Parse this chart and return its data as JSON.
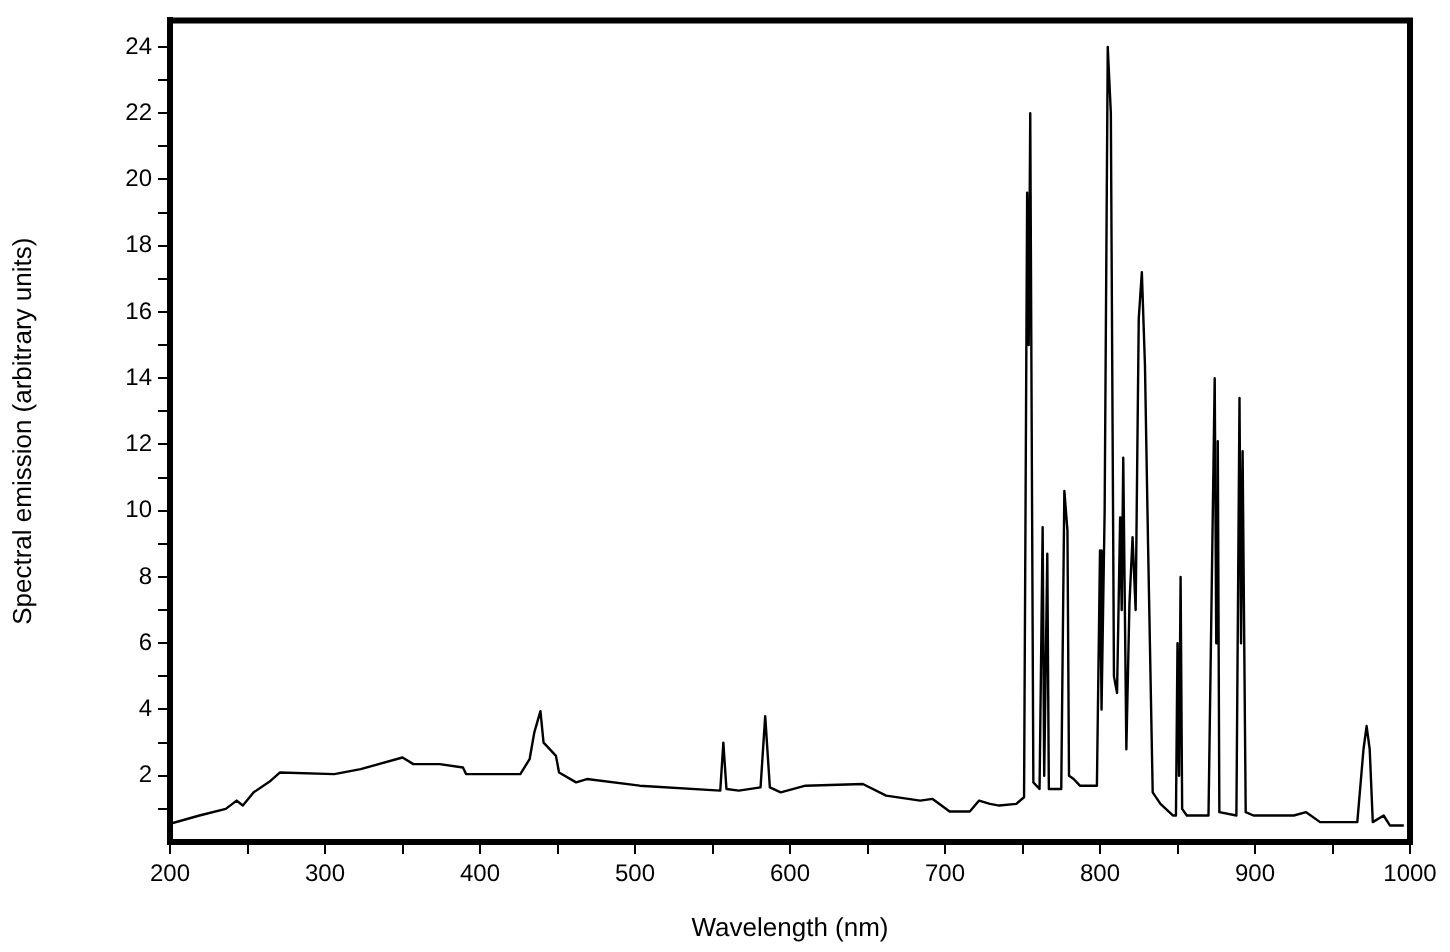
{
  "chart_data": {
    "type": "line",
    "xlabel": "Wavelength (nm)",
    "ylabel": "Spectral emission (arbitrary units)",
    "x": [
      200,
      219,
      236,
      243,
      247,
      254,
      265,
      271,
      306,
      323,
      350,
      357,
      374,
      389,
      391,
      426,
      432,
      435,
      439,
      441,
      443,
      449,
      451,
      462,
      469,
      503,
      555,
      557,
      559,
      567,
      581,
      584,
      587,
      594,
      610,
      647,
      662,
      684,
      692,
      703,
      716,
      722,
      729,
      735,
      746,
      751,
      753,
      754,
      755,
      757,
      761,
      763,
      764,
      766,
      767,
      775,
      777,
      779,
      780,
      783,
      787,
      798,
      800,
      801,
      803,
      805,
      807,
      809,
      811,
      813,
      814,
      815,
      817,
      819,
      821,
      823,
      825,
      827,
      829,
      831,
      834,
      839,
      847,
      849,
      850,
      851,
      852,
      853,
      856,
      870,
      874,
      875,
      876,
      877,
      888,
      890,
      891,
      892,
      894,
      899,
      925,
      933,
      942,
      966,
      970,
      972,
      974,
      976,
      983,
      987,
      996
    ],
    "series": [
      {
        "color": "#000000",
        "values": [
          0.55,
          0.8,
          1.0,
          1.25,
          1.1,
          1.5,
          1.85,
          2.1,
          2.05,
          2.2,
          2.55,
          2.35,
          2.35,
          2.25,
          2.05,
          2.05,
          2.5,
          3.3,
          3.95,
          3.0,
          2.9,
          2.6,
          2.1,
          1.8,
          1.9,
          1.7,
          1.55,
          3.0,
          1.6,
          1.55,
          1.65,
          3.8,
          1.65,
          1.5,
          1.7,
          1.75,
          1.4,
          1.25,
          1.3,
          0.92,
          0.92,
          1.25,
          1.15,
          1.1,
          1.15,
          1.35,
          19.6,
          15,
          22,
          1.8,
          1.6,
          9.5,
          2,
          8.7,
          1.6,
          1.6,
          10.6,
          9.4,
          2,
          1.9,
          1.7,
          1.7,
          8.8,
          4,
          10,
          24,
          22,
          5,
          4.5,
          9.8,
          7,
          11.6,
          2.8,
          7.2,
          9.2,
          7,
          15.8,
          17.2,
          14.4,
          9,
          1.5,
          1.15,
          0.8,
          0.8,
          6.0,
          2,
          8.0,
          1,
          0.8,
          0.8,
          14,
          6,
          12.1,
          0.9,
          0.8,
          13.4,
          6,
          11.8,
          0.9,
          0.8,
          0.8,
          0.9,
          0.6,
          0.6,
          2.8,
          3.5,
          2.8,
          0.6,
          0.8,
          0.5,
          0.5
        ]
      }
    ],
    "xlim": [
      200,
      1000
    ],
    "ylim": [
      0,
      24.8
    ],
    "xticks": [
      200,
      {
        "value": 250,
        "label": null
      },
      300,
      {
        "value": 350,
        "label": null
      },
      400,
      {
        "value": 450,
        "label": null
      },
      500,
      {
        "value": 550,
        "label": null
      },
      600,
      {
        "value": 650,
        "label": null
      },
      700,
      {
        "value": 750,
        "label": null
      },
      800,
      {
        "value": 850,
        "label": null
      },
      900,
      {
        "value": 950,
        "label": null
      },
      1000
    ],
    "yticks": [
      {
        "value": 1,
        "label": null
      },
      2,
      {
        "value": 3,
        "label": null
      },
      4,
      {
        "value": 5,
        "label": null
      },
      6,
      {
        "value": 7,
        "label": null
      },
      8,
      {
        "value": 9,
        "label": null
      },
      10,
      {
        "value": 11,
        "label": null
      },
      12,
      {
        "value": 13,
        "label": null
      },
      14,
      {
        "value": 15,
        "label": null
      },
      16,
      {
        "value": 17,
        "label": null
      },
      18,
      {
        "value": 19,
        "label": null
      },
      20,
      {
        "value": 21,
        "label": null
      },
      22,
      {
        "value": 23,
        "label": null
      },
      24
    ],
    "grid": false,
    "legend": false,
    "marker": "none",
    "line_style": "solid"
  }
}
